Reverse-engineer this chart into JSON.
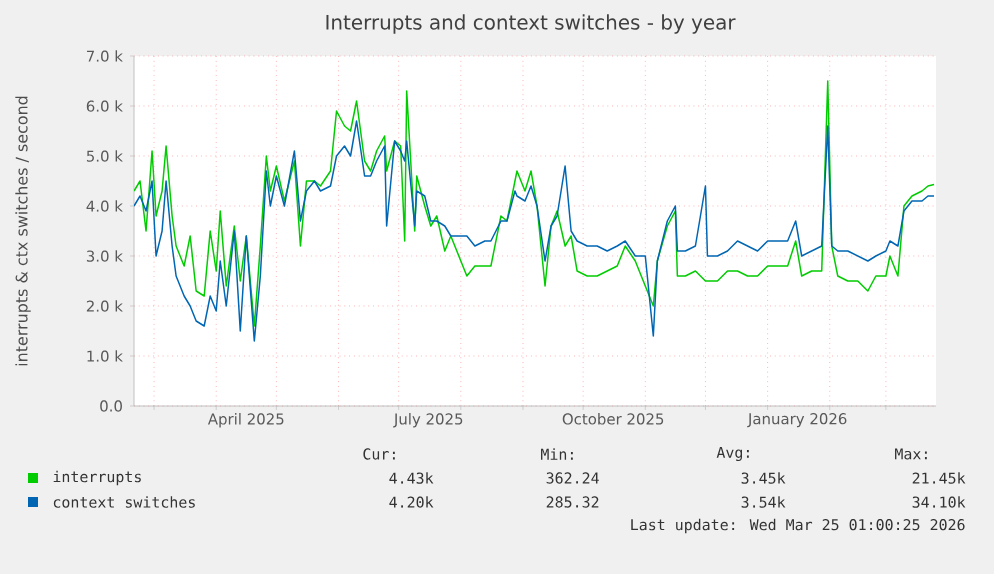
{
  "chart_data": {
    "type": "line",
    "title": "Interrupts and context switches - by year",
    "ylabel": "interrupts & ctx switches / second",
    "x": [
      "2025-02-19",
      "2025-02-22",
      "2025-02-25",
      "2025-02-28",
      "2025-03-02",
      "2025-03-05",
      "2025-03-07",
      "2025-03-10",
      "2025-03-12",
      "2025-03-16",
      "2025-03-19",
      "2025-03-22",
      "2025-03-26",
      "2025-03-29",
      "2025-04-01",
      "2025-04-03",
      "2025-04-06",
      "2025-04-10",
      "2025-04-13",
      "2025-04-16",
      "2025-04-20",
      "2025-04-23",
      "2025-04-26",
      "2025-04-28",
      "2025-05-01",
      "2025-05-05",
      "2025-05-10",
      "2025-05-13",
      "2025-05-16",
      "2025-05-20",
      "2025-05-23",
      "2025-05-28",
      "2025-05-31",
      "2025-06-04",
      "2025-06-07",
      "2025-06-10",
      "2025-06-14",
      "2025-06-17",
      "2025-06-20",
      "2025-06-24",
      "2025-06-25",
      "2025-06-29",
      "2025-07-02",
      "2025-07-04",
      "2025-07-05",
      "2025-07-09",
      "2025-07-10",
      "2025-07-14",
      "2025-07-17",
      "2025-07-20",
      "2025-07-24",
      "2025-07-27",
      "2025-08-01",
      "2025-08-04",
      "2025-08-08",
      "2025-08-13",
      "2025-08-16",
      "2025-08-21",
      "2025-08-24",
      "2025-08-28",
      "2025-08-29",
      "2025-09-02",
      "2025-09-05",
      "2025-09-08",
      "2025-09-12",
      "2025-09-15",
      "2025-09-18",
      "2025-09-22",
      "2025-09-25",
      "2025-09-28",
      "2025-10-03",
      "2025-10-08",
      "2025-10-13",
      "2025-10-18",
      "2025-10-22",
      "2025-10-27",
      "2025-11-01",
      "2025-11-05",
      "2025-11-07",
      "2025-11-12",
      "2025-11-16",
      "2025-11-17",
      "2025-11-21",
      "2025-11-26",
      "2025-12-01",
      "2025-12-02",
      "2025-12-07",
      "2025-12-12",
      "2025-12-17",
      "2025-12-22",
      "2025-12-27",
      "2026-01-01",
      "2026-01-06",
      "2026-01-11",
      "2026-01-15",
      "2026-01-18",
      "2026-01-23",
      "2026-01-28",
      "2026-01-31",
      "2026-02-02",
      "2026-02-05",
      "2026-02-10",
      "2026-02-15",
      "2026-02-20",
      "2026-02-24",
      "2026-03-01",
      "2026-03-03",
      "2026-03-07",
      "2026-03-10",
      "2026-03-14",
      "2026-03-19",
      "2026-03-22",
      "2026-03-25"
    ],
    "series": [
      {
        "name": "interrupts",
        "color": "#00cc00",
        "values": [
          4300,
          4500,
          3500,
          5100,
          3800,
          4300,
          5200,
          3800,
          3200,
          2800,
          3400,
          2300,
          2200,
          3500,
          2700,
          3900,
          2400,
          3600,
          2500,
          3400,
          1600,
          3200,
          5000,
          4300,
          4800,
          4100,
          4900,
          3200,
          4500,
          4500,
          4400,
          4700,
          5900,
          5600,
          5500,
          6100,
          4900,
          4700,
          5100,
          5400,
          4700,
          5300,
          5200,
          3300,
          6300,
          3500,
          4600,
          4000,
          3600,
          3800,
          3100,
          3400,
          2900,
          2600,
          2800,
          2800,
          2800,
          3800,
          3700,
          4500,
          4700,
          4300,
          4700,
          4000,
          2400,
          3600,
          3900,
          3200,
          3400,
          2700,
          2600,
          2600,
          2700,
          2800,
          3200,
          2900,
          2400,
          2000,
          2900,
          3600,
          3900,
          2600,
          2600,
          2700,
          2500,
          2500,
          2500,
          2700,
          2700,
          2600,
          2600,
          2800,
          2800,
          2800,
          3300,
          2600,
          2700,
          2700,
          6500,
          3200,
          2600,
          2500,
          2500,
          2300,
          2600,
          2600,
          3000,
          2600,
          4000,
          4200,
          4300,
          4400,
          4430
        ]
      },
      {
        "name": "context switches",
        "color": "#0066b3",
        "values": [
          4000,
          4200,
          3900,
          4500,
          3000,
          3500,
          4500,
          3200,
          2600,
          2200,
          2000,
          1700,
          1600,
          2200,
          1900,
          2900,
          2000,
          3500,
          1500,
          3400,
          1300,
          2600,
          4700,
          4000,
          4600,
          4000,
          5100,
          3700,
          4300,
          4500,
          4300,
          4400,
          5000,
          5200,
          5000,
          5700,
          4600,
          4600,
          4900,
          5200,
          3600,
          5300,
          5100,
          4900,
          5300,
          3600,
          4300,
          4200,
          3700,
          3700,
          3600,
          3400,
          3400,
          3400,
          3200,
          3300,
          3300,
          3700,
          3700,
          4300,
          4200,
          4100,
          4400,
          4000,
          2900,
          3600,
          3800,
          4800,
          3500,
          3300,
          3200,
          3200,
          3100,
          3200,
          3300,
          3000,
          3000,
          1400,
          2900,
          3700,
          4000,
          3100,
          3100,
          3200,
          4400,
          3000,
          3000,
          3100,
          3300,
          3200,
          3100,
          3300,
          3300,
          3300,
          3700,
          3000,
          3100,
          3200,
          5600,
          3200,
          3100,
          3100,
          3000,
          2900,
          3000,
          3100,
          3300,
          3200,
          3900,
          4100,
          4100,
          4200,
          4200
        ]
      }
    ],
    "xlim": [
      "2025-02-19",
      "2026-03-26"
    ],
    "xticks": [
      {
        "value": "2025-03-01",
        "label": null
      },
      {
        "value": "2025-04-01",
        "label": null
      },
      {
        "value": "2025-05-01",
        "label": null
      },
      {
        "value": "2025-06-01",
        "label": null
      },
      {
        "value": "2025-07-01",
        "label": null
      },
      {
        "value": "2025-08-01",
        "label": null
      },
      {
        "value": "2025-09-01",
        "label": null
      },
      {
        "value": "2025-10-01",
        "label": null
      },
      {
        "value": "2025-11-01",
        "label": null
      },
      {
        "value": "2025-12-01",
        "label": null
      },
      {
        "value": "2026-01-01",
        "label": null
      },
      {
        "value": "2026-02-01",
        "label": null
      },
      {
        "value": "2026-03-01",
        "label": null
      },
      {
        "value": "2025-04-16",
        "label": "April 2025"
      },
      {
        "value": "2025-07-16",
        "label": "July 2025"
      },
      {
        "value": "2025-10-16",
        "label": "October 2025"
      },
      {
        "value": "2026-01-16",
        "label": "January 2026"
      }
    ],
    "ylim": [
      0,
      7000
    ],
    "yticks": [
      {
        "value": 0,
        "label": "0.0"
      },
      {
        "value": 1000,
        "label": "1.0 k"
      },
      {
        "value": 2000,
        "label": "2.0 k"
      },
      {
        "value": 3000,
        "label": "3.0 k"
      },
      {
        "value": 4000,
        "label": "4.0 k"
      },
      {
        "value": 5000,
        "label": "5.0 k"
      },
      {
        "value": 6000,
        "label": "6.0 k"
      },
      {
        "value": 7000,
        "label": "7.0 k"
      }
    ],
    "grid": true,
    "legend": "bottom",
    "marker": "none",
    "line_style": "solid",
    "annotations": [
      "Cur:",
      "Min:",
      "Avg:",
      "Max:",
      "4.43k",
      "362.24",
      "3.45k",
      "21.45k",
      "4.20k",
      "285.32",
      "3.54k",
      "34.10k",
      "Last update: Wed Mar 25 01:00:25 2026"
    ]
  }
}
